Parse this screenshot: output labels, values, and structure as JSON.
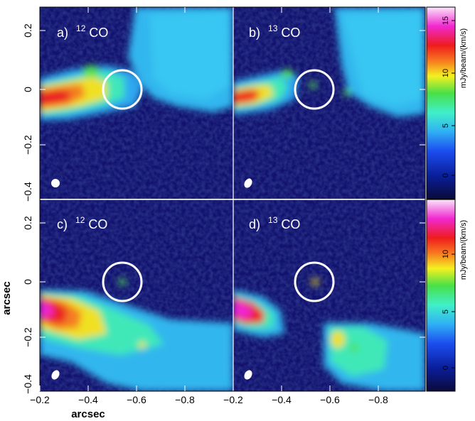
{
  "figure": {
    "panels": [
      {
        "id": "a",
        "label": "a)",
        "isotope": "12",
        "molecule": "CO",
        "colorbar_max": 16
      },
      {
        "id": "b",
        "label": "b)",
        "isotope": "13",
        "molecule": "CO",
        "colorbar_max": 16
      },
      {
        "id": "c",
        "label": "c)",
        "isotope": "12",
        "molecule": "CO",
        "colorbar_max": 14
      },
      {
        "id": "d",
        "label": "d)",
        "isotope": "13",
        "molecule": "CO",
        "colorbar_max": 14
      }
    ],
    "x_axis_label": "arcsec",
    "y_axis_label": "arcsec",
    "x_ticks": [
      "−0.2",
      "−0.4",
      "−0.6",
      "−0.8"
    ],
    "y_ticks": [
      "0.2",
      "0",
      "−0.2",
      "−0.4"
    ],
    "colorbar_top": {
      "label": "mJy/beam/(km/s)",
      "ticks": [
        "15",
        "10",
        "5",
        "0"
      ]
    },
    "colorbar_bottom": {
      "label": "mJy/beam/(km/s)",
      "ticks": [
        "10",
        "5",
        "0"
      ]
    },
    "colors": {
      "background": "#12126e",
      "circle": "#ffffff",
      "axis_text": "#000000"
    }
  }
}
